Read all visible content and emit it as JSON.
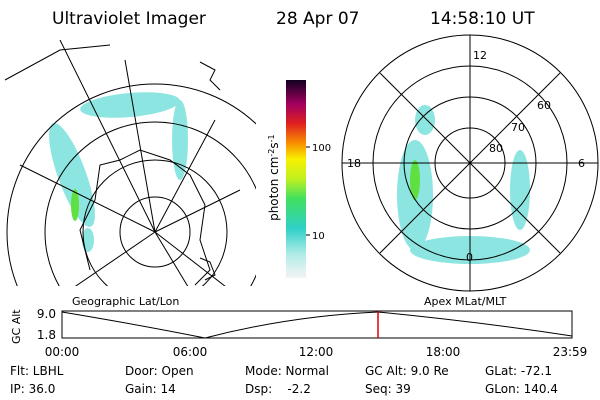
{
  "header": {
    "title": "Ultraviolet Imager",
    "date": "28 Apr 07",
    "time": "14:58:10 UT"
  },
  "colorbar": {
    "label": "photon cm",
    "exp1": "-2",
    "unit2": "s",
    "exp2": "-1",
    "ticks": [
      "100",
      "10"
    ]
  },
  "polar": {
    "mlt_labels": [
      "12",
      "18",
      "6",
      "0"
    ],
    "lat_labels": [
      "60",
      "70",
      "80"
    ]
  },
  "map_labels": {
    "left": "Geographic Lat/Lon",
    "right": "Apex MLat/MLT"
  },
  "altitude": {
    "ylabel": "GC Alt",
    "yticks": [
      "9.0",
      "1.8"
    ],
    "xticks": [
      "00:00",
      "06:00",
      "12:00",
      "18:00",
      "23:59"
    ]
  },
  "footer": {
    "rows": [
      [
        "Flt: LBHL",
        "Door: Open",
        "Mode: Normal",
        "GC Alt: 9.0 Re",
        "GLat: -72.1"
      ],
      [
        "IP: 36.0",
        "Gain: 14",
        "Dsp:    -2.2",
        "Seq: 39",
        "GLon: 140.4"
      ]
    ]
  }
}
